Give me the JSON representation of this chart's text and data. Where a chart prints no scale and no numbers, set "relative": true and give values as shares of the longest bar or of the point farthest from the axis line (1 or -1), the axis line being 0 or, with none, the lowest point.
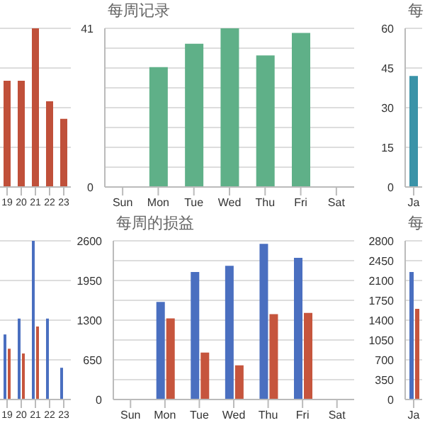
{
  "chart_data": [
    {
      "type": "bar",
      "relative": true,
      "categories": [
        "19",
        "20",
        "21",
        "22",
        "23"
      ],
      "values": [
        0.67,
        0.67,
        1,
        0.54,
        0.43
      ],
      "color": "#c0503a",
      "grid": "y",
      "tick_labels": "x"
    },
    {
      "type": "bar",
      "title": "每周记录",
      "categories": [
        "Sun",
        "Mon",
        "Tue",
        "Wed",
        "Thu",
        "Fri",
        "Sat"
      ],
      "values": [
        null,
        31,
        37,
        41,
        34,
        39.8,
        null
      ],
      "color": "#5fb088",
      "ylim": [
        0,
        41
      ],
      "yticks": [
        0,
        {
          "value": 5.125,
          "label": null
        },
        {
          "value": 10.25,
          "label": null
        },
        {
          "value": 15.375,
          "label": null
        },
        {
          "value": 20.5,
          "label": null
        },
        {
          "value": 25.625,
          "label": null
        },
        {
          "value": 30.75,
          "label": null
        },
        {
          "value": 35.875,
          "label": null
        },
        41
      ],
      "grid": "y"
    },
    {
      "type": "bar",
      "title": "每",
      "categories": [
        "Ja"
      ],
      "values": [
        42
      ],
      "color": "#3a93a8",
      "ylim": [
        0,
        60
      ],
      "yticks": [
        0,
        15,
        30,
        45,
        60
      ],
      "grid": "y"
    },
    {
      "type": "bar",
      "relative": true,
      "categories": [
        "19",
        "20",
        "21",
        "22",
        "23"
      ],
      "series": [
        {
          "color": "#4a6fc0",
          "values": [
            0.41,
            0.51,
            1,
            0.51,
            0.2
          ]
        },
        {
          "color": "#c6553d",
          "values": [
            0.32,
            0.29,
            0.46,
            null,
            null
          ]
        }
      ],
      "grid": "y",
      "tick_labels": "x"
    },
    {
      "type": "bar",
      "title": "每周的损益",
      "categories": [
        "Sun",
        "Mon",
        "Tue",
        "Wed",
        "Thu",
        "Fri",
        "Sat"
      ],
      "series": [
        {
          "color": "#4a6fc0",
          "values": [
            null,
            1600,
            2090,
            2190,
            2550,
            2320,
            null
          ]
        },
        {
          "color": "#c6553d",
          "values": [
            null,
            1330,
            770,
            560,
            1400,
            1420,
            null
          ]
        }
      ],
      "ylim": [
        0,
        2600
      ],
      "yticks": [
        0,
        {
          "value": 325,
          "label": null
        },
        650,
        {
          "value": 975,
          "label": null
        },
        1300,
        {
          "value": 1625,
          "label": null
        },
        1950,
        {
          "value": 2275,
          "label": null
        },
        2600
      ],
      "grid": "y"
    },
    {
      "type": "bar",
      "title": "每",
      "categories": [
        "Ja"
      ],
      "series": [
        {
          "color": "#4a6fc0",
          "values": [
            2250
          ]
        },
        {
          "color": "#c6553d",
          "values": [
            1600
          ]
        }
      ],
      "ylim": [
        0,
        2800
      ],
      "yticks": [
        0,
        350,
        700,
        1050,
        1400,
        1750,
        2100,
        2450,
        2800
      ],
      "grid": "y"
    }
  ]
}
